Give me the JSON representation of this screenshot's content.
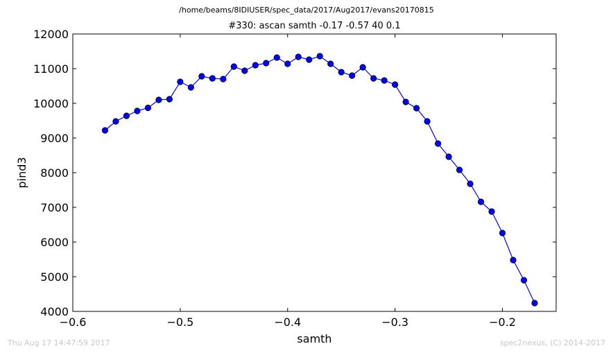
{
  "header": {
    "path": "/home/beams/8IDIUSER/spec_data/2017/Aug2017/evans20170815"
  },
  "footer": {
    "timestamp": "Thu Aug 17 14:47:59 2017",
    "credit": "spec2nexus, (C) 2014-2017"
  },
  "colors": {
    "series": "#0000ff",
    "marker_edge": "#000000",
    "footer_text": "#c8c8c8"
  },
  "chart_data": {
    "type": "line",
    "title": "#330: ascan  samth -0.17 -0.57  40 0.1",
    "xlabel": "samth",
    "ylabel": "pind3",
    "xlim": [
      -0.6,
      -0.15
    ],
    "ylim": [
      4000,
      12000
    ],
    "xticks": [
      -0.6,
      -0.5,
      -0.4,
      -0.3,
      -0.2
    ],
    "xtick_labels": [
      "−0.6",
      "−0.5",
      "−0.4",
      "−0.3",
      "−0.2"
    ],
    "yticks": [
      4000,
      5000,
      6000,
      7000,
      8000,
      9000,
      10000,
      11000,
      12000
    ],
    "ytick_labels": [
      "4000",
      "5000",
      "6000",
      "7000",
      "8000",
      "9000",
      "10000",
      "11000",
      "12000"
    ],
    "grid": false,
    "marker": "circle",
    "series": [
      {
        "x": [
          -0.57,
          -0.56,
          -0.55,
          -0.54,
          -0.53,
          -0.52,
          -0.51,
          -0.5,
          -0.49,
          -0.48,
          -0.47,
          -0.46,
          -0.45,
          -0.44,
          -0.43,
          -0.42,
          -0.41,
          -0.4,
          -0.39,
          -0.38,
          -0.37,
          -0.36,
          -0.35,
          -0.34,
          -0.33,
          -0.32,
          -0.31,
          -0.3,
          -0.29,
          -0.28,
          -0.27,
          -0.26,
          -0.25,
          -0.24,
          -0.23,
          -0.22,
          -0.21,
          -0.2,
          -0.19,
          -0.18,
          -0.17
        ],
        "values": [
          9220,
          9480,
          9640,
          9780,
          9870,
          10100,
          10120,
          10620,
          10460,
          10780,
          10720,
          10700,
          11060,
          10940,
          11100,
          11160,
          11320,
          11140,
          11340,
          11260,
          11360,
          11140,
          10900,
          10800,
          11040,
          10720,
          10660,
          10540,
          10040,
          9860,
          9480,
          8840,
          8460,
          8080,
          7680,
          7160,
          6880,
          6260,
          5480,
          4900,
          4240
        ]
      }
    ]
  }
}
